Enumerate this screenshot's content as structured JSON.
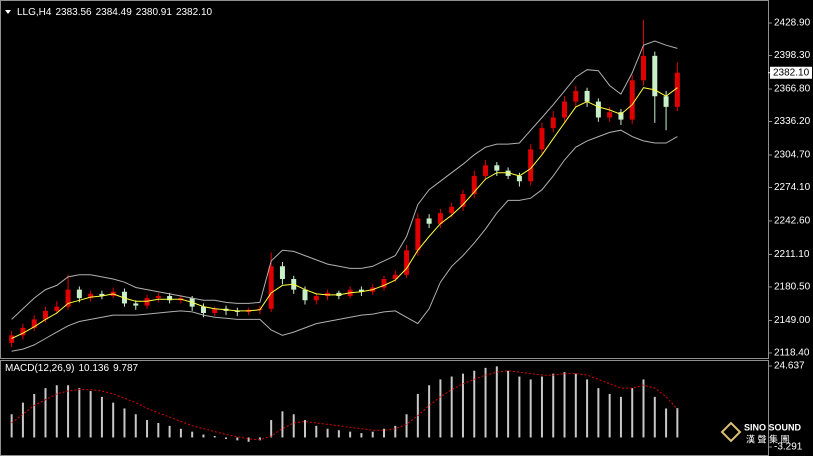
{
  "chart_data": [
    {
      "type": "candlestick",
      "title": "LLG,H4",
      "ohlc_info": [
        2383.56,
        2384.49,
        2380.91,
        {
          "value": 2382.1,
          "label": "2382.10"
        }
      ],
      "last_price": {
        "value": 2382.1,
        "label": "2382.10"
      },
      "up_color": "#e00000",
      "down_color": "#c8f0c8",
      "ylim": [
        2114.6,
        2446.8
      ],
      "yticks": [
        {
          "value": 2118.4,
          "label": "2118.40"
        },
        {
          "value": 2149,
          "label": "2149.00"
        },
        {
          "value": 2180.5,
          "label": "2180.50"
        },
        {
          "value": 2211.1,
          "label": "2211.10"
        },
        {
          "value": 2242.6,
          "label": "2242.60"
        },
        {
          "value": 2274.1,
          "label": "2274.10"
        },
        {
          "value": 2304.7,
          "label": "2304.70"
        },
        {
          "value": 2336.2,
          "label": "2336.20"
        },
        {
          "value": 2366.8,
          "label": "2366.80"
        },
        {
          "value": 2398.3,
          "label": "2398.30"
        },
        {
          "value": 2428.9,
          "label": "2428.90"
        }
      ],
      "open": [
        2128,
        2135,
        2142,
        2150,
        2158,
        2162,
        2178,
        2170,
        2174,
        2172,
        2176,
        2165,
        2163,
        2170,
        2172,
        2168,
        2170,
        2162,
        2156,
        2160,
        2158,
        2157,
        2159,
        2160,
        2200,
        2188,
        2178,
        2168,
        2172,
        2175,
        2172,
        2178,
        2176,
        2180,
        2188,
        2192,
        2215,
        2245,
        2240,
        2250,
        2256,
        2268,
        2285,
        2295,
        2290,
        2285,
        2280,
        2310,
        2330,
        2340,
        2355,
        2365,
        2355,
        2340,
        2345,
        2338,
        2375,
        2398,
        2360,
        2350
      ],
      "high": [
        2139,
        2146,
        2154,
        2162,
        2167,
        2192,
        2181,
        2177,
        2177,
        2180,
        2179,
        2168,
        2173,
        2175,
        2175,
        2173,
        2172,
        2165,
        2162,
        2163,
        2161,
        2161,
        2163,
        2213,
        2204,
        2191,
        2181,
        2175,
        2178,
        2177,
        2181,
        2181,
        2183,
        2191,
        2196,
        2220,
        2250,
        2249,
        2254,
        2260,
        2272,
        2290,
        2300,
        2298,
        2293,
        2288,
        2315,
        2335,
        2346,
        2360,
        2370,
        2368,
        2358,
        2350,
        2348,
        2380,
        2432,
        2402,
        2365,
        2392
      ],
      "low": [
        2124,
        2131,
        2139,
        2147,
        2155,
        2159,
        2166,
        2167,
        2169,
        2170,
        2162,
        2159,
        2160,
        2166,
        2165,
        2165,
        2158,
        2152,
        2153,
        2154,
        2153,
        2154,
        2155,
        2157,
        2183,
        2174,
        2164,
        2164,
        2168,
        2169,
        2170,
        2172,
        2173,
        2177,
        2185,
        2189,
        2210,
        2236,
        2236,
        2246,
        2252,
        2264,
        2281,
        2285,
        2282,
        2275,
        2276,
        2306,
        2326,
        2336,
        2350,
        2350,
        2336,
        2336,
        2333,
        2334,
        2370,
        2335,
        2328,
        2346
      ],
      "close": [
        2135,
        2142,
        2150,
        2158,
        2162,
        2178,
        2170,
        2174,
        2172,
        2176,
        2165,
        2163,
        2170,
        2172,
        2168,
        2170,
        2162,
        2156,
        2160,
        2158,
        2157,
        2159,
        2160,
        2200,
        2188,
        2178,
        2168,
        2172,
        2175,
        2172,
        2178,
        2176,
        2180,
        2188,
        2192,
        2215,
        2245,
        2240,
        2250,
        2256,
        2268,
        2285,
        2295,
        2290,
        2285,
        2280,
        2310,
        2330,
        2340,
        2355,
        2365,
        2355,
        2340,
        2345,
        2338,
        2375,
        2398,
        2360,
        2350,
        2382.1
      ],
      "overlays": [
        {
          "color": "#b0b0b0",
          "values": [
            2150,
            2160,
            2170,
            2178,
            2182,
            2190,
            2192,
            2192,
            2190,
            2188,
            2185,
            2180,
            2178,
            2176,
            2174,
            2172,
            2170,
            2168,
            2168,
            2166,
            2165,
            2165,
            2166,
            2205,
            2215,
            2214,
            2210,
            2206,
            2202,
            2200,
            2198,
            2198,
            2200,
            2205,
            2210,
            2228,
            2258,
            2272,
            2280,
            2288,
            2296,
            2305,
            2312,
            2315,
            2315,
            2316,
            2328,
            2340,
            2352,
            2365,
            2378,
            2385,
            2384,
            2370,
            2362,
            2382,
            2408,
            2412,
            2408,
            2405
          ]
        },
        {
          "color": "#b0b0b0",
          "values": [
            2120,
            2122,
            2126,
            2132,
            2138,
            2144,
            2148,
            2150,
            2152,
            2154,
            2154,
            2154,
            2155,
            2156,
            2157,
            2158,
            2157,
            2154,
            2152,
            2151,
            2150,
            2150,
            2150,
            2140,
            2135,
            2138,
            2142,
            2146,
            2148,
            2150,
            2152,
            2154,
            2155,
            2157,
            2158,
            2152,
            2146,
            2160,
            2185,
            2200,
            2210,
            2222,
            2235,
            2250,
            2262,
            2262,
            2264,
            2272,
            2285,
            2300,
            2312,
            2318,
            2322,
            2326,
            2328,
            2322,
            2318,
            2316,
            2316,
            2322
          ]
        },
        {
          "color": "#ffff40",
          "values": [
            2132,
            2137,
            2143,
            2150,
            2156,
            2165,
            2168,
            2171,
            2172,
            2174,
            2170,
            2167,
            2167,
            2169,
            2169,
            2169,
            2166,
            2162,
            2160,
            2159,
            2158,
            2158,
            2159,
            2175,
            2182,
            2183,
            2178,
            2174,
            2173,
            2173,
            2175,
            2176,
            2178,
            2182,
            2187,
            2198,
            2215,
            2228,
            2240,
            2248,
            2258,
            2270,
            2282,
            2288,
            2288,
            2285,
            2292,
            2305,
            2320,
            2335,
            2350,
            2355,
            2350,
            2347,
            2343,
            2352,
            2368,
            2366,
            2360,
            2368
          ]
        }
      ]
    },
    {
      "type": "macd",
      "title": "MACD(12,26,9)",
      "macd_value": 10.136,
      "signal_value": 9.787,
      "color": "#c8c8c8",
      "signal_color": "#e00000",
      "ylim": [
        -6.05,
        26.7
      ],
      "yticks": [
        24.637,
        -3.291
      ],
      "values": [
        8,
        12,
        15,
        17,
        18,
        18,
        17,
        16,
        14,
        12,
        10,
        8,
        6,
        5,
        4,
        3,
        2,
        1,
        0.5,
        -0.5,
        -1,
        -1.5,
        -1,
        6,
        9,
        8,
        6,
        4,
        3,
        2.5,
        2,
        1.5,
        2,
        3,
        4,
        8,
        15,
        18,
        20,
        21,
        22,
        23,
        24,
        24.5,
        23,
        21,
        20,
        21,
        22,
        22.5,
        22,
        20,
        17,
        15,
        14,
        17,
        20,
        14,
        10,
        10.136
      ],
      "signal": [
        5,
        8,
        11,
        13,
        15,
        16,
        16.5,
        16.5,
        16,
        15,
        13.5,
        12,
        10,
        8.5,
        7,
        5.5,
        4,
        3,
        2,
        1,
        0.3,
        -0.5,
        -0.8,
        0.5,
        3,
        5,
        5.5,
        5,
        4.5,
        4,
        3.5,
        3,
        2.5,
        2.5,
        3,
        4.5,
        7.5,
        11,
        14,
        16.5,
        18.5,
        20,
        21.5,
        22.5,
        23,
        22.5,
        22,
        21.5,
        21.5,
        22,
        22,
        21.5,
        20,
        18.5,
        17,
        17,
        18,
        17,
        14,
        9.787
      ]
    }
  ],
  "watermark": {
    "brand": "SINO SOUND",
    "chinese": "漢 聲 集 團"
  }
}
